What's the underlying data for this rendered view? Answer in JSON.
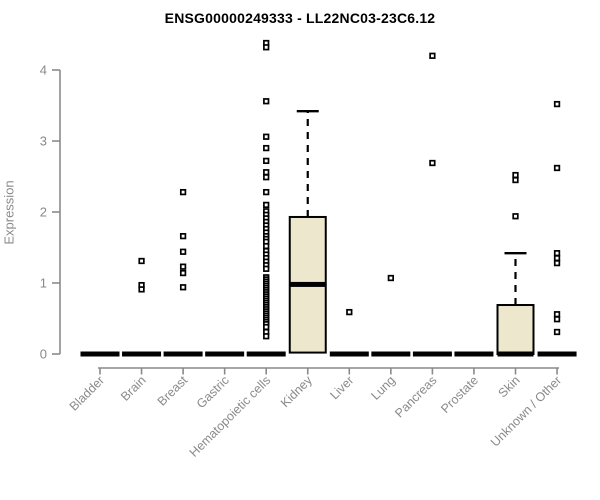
{
  "chart_data": {
    "type": "boxplot",
    "title": "ENSG00000249333 - LL22NC03-23C6.12",
    "ylabel": "Expression",
    "xlabel": "",
    "ylim": [
      0,
      4.45
    ],
    "yticks": [
      0,
      1,
      2,
      3,
      4
    ],
    "grid": false,
    "legend": "none",
    "categories": [
      "Bladder",
      "Brain",
      "Breast",
      "Gastric",
      "Hematopoietic cells",
      "Kidney",
      "Liver",
      "Lung",
      "Pancreas",
      "Prostate",
      "Skin",
      "Unknown / Other"
    ],
    "boxes": [
      {
        "category": "Bladder",
        "q1": 0,
        "median": 0,
        "q3": 0,
        "whisker_low": 0,
        "whisker_high": 0,
        "outliers": []
      },
      {
        "category": "Brain",
        "q1": 0,
        "median": 0,
        "q3": 0,
        "whisker_low": 0,
        "whisker_high": 0,
        "outliers": [
          1.31,
          0.97,
          0.91
        ]
      },
      {
        "category": "Breast",
        "q1": 0,
        "median": 0,
        "q3": 0,
        "whisker_low": 0,
        "whisker_high": 0,
        "outliers": [
          2.28,
          1.66,
          1.44,
          1.23,
          1.14,
          0.94
        ]
      },
      {
        "category": "Gastric",
        "q1": 0,
        "median": 0,
        "q3": 0,
        "whisker_low": 0,
        "whisker_high": 0,
        "outliers": []
      },
      {
        "category": "Hematopoietic cells",
        "q1": 0,
        "median": 0,
        "q3": 0,
        "whisker_low": 0,
        "whisker_high": 0,
        "outliers": [
          4.38,
          4.32,
          3.56,
          3.06,
          2.9,
          2.72,
          2.56,
          2.49,
          2.28,
          2.1,
          2.01,
          1.96,
          1.91,
          1.86,
          1.81,
          1.76,
          1.71,
          1.66,
          1.62,
          1.58,
          1.52,
          1.45,
          1.4,
          1.35,
          1.3,
          1.25,
          1.2,
          1.08,
          1.05,
          1.02,
          0.99,
          0.96,
          0.93,
          0.9,
          0.87,
          0.84,
          0.81,
          0.78,
          0.75,
          0.72,
          0.69,
          0.66,
          0.63,
          0.6,
          0.57,
          0.54,
          0.51,
          0.48,
          0.45,
          0.42,
          0.38,
          0.31,
          0.25
        ]
      },
      {
        "category": "Kidney",
        "q1": 0.02,
        "median": 0.98,
        "q3": 1.93,
        "whisker_low": 0.02,
        "whisker_high": 3.42,
        "outliers": []
      },
      {
        "category": "Liver",
        "q1": 0,
        "median": 0,
        "q3": 0,
        "whisker_low": 0,
        "whisker_high": 0,
        "outliers": [
          0.59
        ]
      },
      {
        "category": "Lung",
        "q1": 0,
        "median": 0,
        "q3": 0,
        "whisker_low": 0,
        "whisker_high": 0,
        "outliers": [
          1.07
        ]
      },
      {
        "category": "Pancreas",
        "q1": 0,
        "median": 0,
        "q3": 0,
        "whisker_low": 0,
        "whisker_high": 0,
        "outliers": [
          4.2,
          2.69
        ]
      },
      {
        "category": "Prostate",
        "q1": 0,
        "median": 0,
        "q3": 0,
        "whisker_low": 0,
        "whisker_high": 0,
        "outliers": []
      },
      {
        "category": "Skin",
        "q1": 0,
        "median": 0,
        "q3": 0.69,
        "whisker_low": 0,
        "whisker_high": 1.42,
        "outliers": [
          2.52,
          2.45,
          1.94
        ]
      },
      {
        "category": "Unknown / Other",
        "q1": 0,
        "median": 0,
        "q3": 0,
        "whisker_low": 0,
        "whisker_high": 0,
        "outliers": [
          3.52,
          2.62,
          1.42,
          1.35,
          1.28,
          0.56,
          0.49,
          0.31
        ]
      }
    ],
    "colors": {
      "box_fill": "#EDE7CD",
      "box_stroke": "#000000",
      "median": "#000000",
      "outlier": "#000000",
      "axis": "#8a8a8a",
      "tick_text": "#8a8a8a",
      "title_text": "#000000"
    }
  }
}
